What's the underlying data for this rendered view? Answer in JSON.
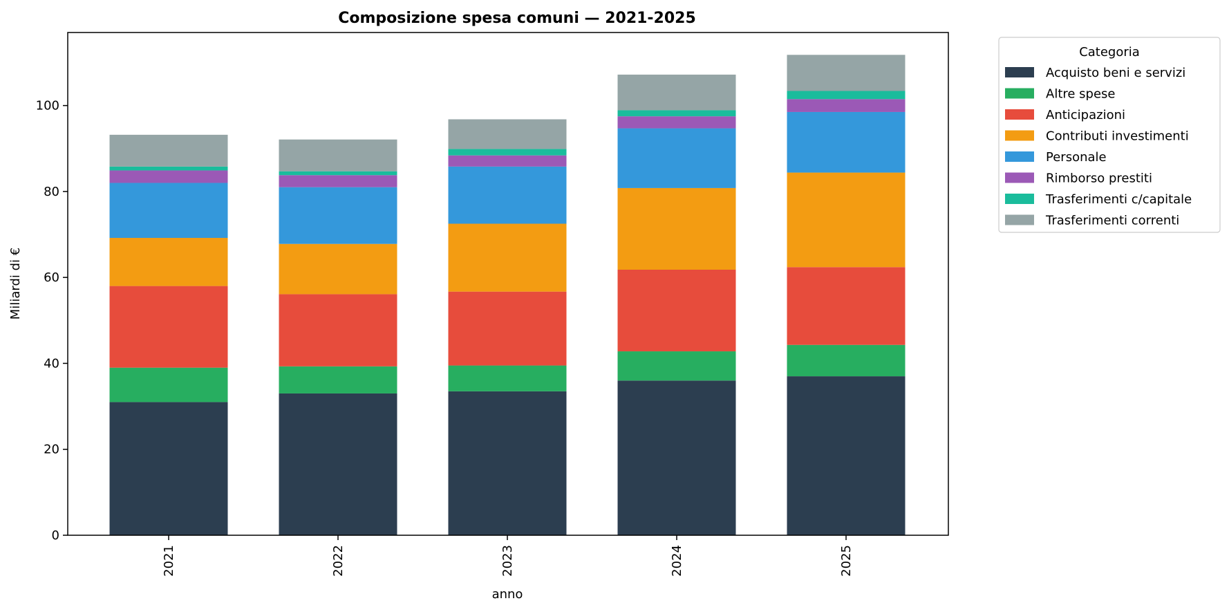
{
  "chart_data": {
    "type": "bar",
    "stacked": true,
    "title": "Composizione spesa comuni — 2021-2025",
    "xlabel": "anno",
    "ylabel": "Miliardi di €",
    "ylim": [
      0,
      117
    ],
    "yticks": [
      0,
      20,
      40,
      60,
      80,
      100
    ],
    "categories": [
      "2021",
      "2022",
      "2023",
      "2024",
      "2025"
    ],
    "grid": false,
    "legend": {
      "title": "Categoria",
      "placement": "outside-top-right"
    },
    "series": [
      {
        "name": "Acquisto beni e servizi",
        "color": "#2c3e50",
        "values": [
          31.0,
          33.0,
          33.5,
          36.0,
          37.0
        ]
      },
      {
        "name": "Altre spese",
        "color": "#27ae60",
        "values": [
          8.0,
          6.3,
          6.0,
          6.8,
          7.3
        ]
      },
      {
        "name": "Anticipazioni",
        "color": "#e74c3c",
        "values": [
          19.0,
          16.8,
          17.2,
          19.0,
          18.1
        ]
      },
      {
        "name": "Contributi investimenti",
        "color": "#f39c12",
        "values": [
          11.2,
          11.7,
          15.8,
          19.0,
          22.0
        ]
      },
      {
        "name": "Personale",
        "color": "#3498db",
        "values": [
          12.8,
          13.2,
          13.3,
          13.9,
          14.1
        ]
      },
      {
        "name": "Rimborso prestiti",
        "color": "#9b59b6",
        "values": [
          2.9,
          2.8,
          2.6,
          2.8,
          3.0
        ]
      },
      {
        "name": "Trasferimenti c/capitale",
        "color": "#1abc9c",
        "values": [
          0.9,
          0.9,
          1.5,
          1.4,
          1.9
        ]
      },
      {
        "name": "Trasferimenti correnti",
        "color": "#95a5a6",
        "values": [
          7.4,
          7.4,
          6.9,
          8.3,
          8.4
        ]
      }
    ]
  }
}
